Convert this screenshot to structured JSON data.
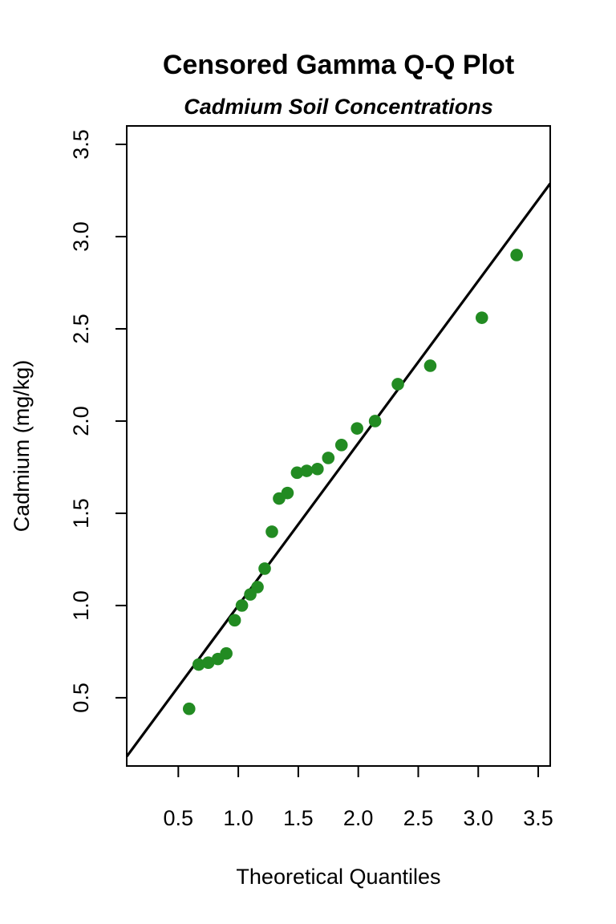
{
  "chart_data": {
    "type": "scatter",
    "title": "Censored Gamma Q-Q Plot",
    "subtitle": "Cadmium Soil Concentrations",
    "xlabel": "Theoretical Quantiles",
    "ylabel": "Cadmium (mg/kg)",
    "xlim": [
      0.07,
      3.6
    ],
    "ylim": [
      0.13,
      3.6
    ],
    "xticks": [
      "0.5",
      "1.0",
      "1.5",
      "2.0",
      "2.5",
      "3.0",
      "3.5"
    ],
    "yticks": [
      "0.5",
      "1.0",
      "1.5",
      "2.0",
      "2.5",
      "3.0",
      "3.5"
    ],
    "grid": false,
    "point_color": "#228B22",
    "line_color": "#000000",
    "points": [
      {
        "x": 0.59,
        "y": 0.44
      },
      {
        "x": 0.67,
        "y": 0.68
      },
      {
        "x": 0.75,
        "y": 0.69
      },
      {
        "x": 0.83,
        "y": 0.71
      },
      {
        "x": 0.9,
        "y": 0.74
      },
      {
        "x": 0.97,
        "y": 0.92
      },
      {
        "x": 1.03,
        "y": 1.0
      },
      {
        "x": 1.1,
        "y": 1.06
      },
      {
        "x": 1.16,
        "y": 1.1
      },
      {
        "x": 1.22,
        "y": 1.2
      },
      {
        "x": 1.28,
        "y": 1.4
      },
      {
        "x": 1.34,
        "y": 1.58
      },
      {
        "x": 1.41,
        "y": 1.61
      },
      {
        "x": 1.49,
        "y": 1.72
      },
      {
        "x": 1.57,
        "y": 1.73
      },
      {
        "x": 1.66,
        "y": 1.74
      },
      {
        "x": 1.75,
        "y": 1.8
      },
      {
        "x": 1.86,
        "y": 1.87
      },
      {
        "x": 1.99,
        "y": 1.96
      },
      {
        "x": 2.14,
        "y": 2.0
      },
      {
        "x": 2.33,
        "y": 2.2
      },
      {
        "x": 2.6,
        "y": 2.3
      },
      {
        "x": 3.03,
        "y": 2.56
      },
      {
        "x": 3.32,
        "y": 2.9
      }
    ],
    "reference_line": {
      "intercept": 0.12,
      "slope": 0.88
    }
  }
}
